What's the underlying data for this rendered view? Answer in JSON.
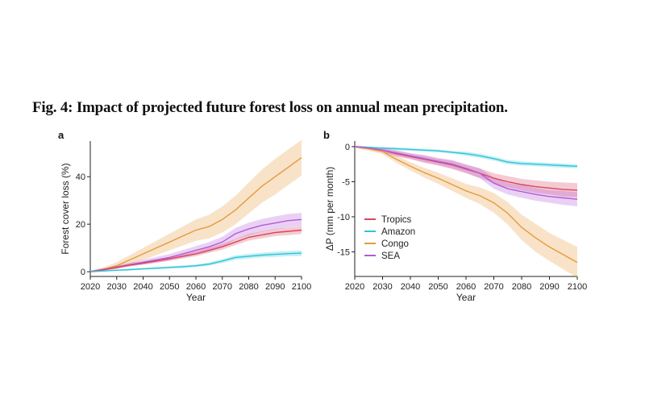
{
  "figure": {
    "title": "Fig. 4: Impact of projected future forest loss on annual mean precipitation."
  },
  "colors": {
    "Tropics": "#d9465f",
    "Amazon": "#2fc4d8",
    "Congo": "#e69a3d",
    "SEA": "#b45ad8",
    "axis": "#222222"
  },
  "chart_data": [
    {
      "panel": "a",
      "type": "line",
      "xlabel": "Year",
      "ylabel": "Forest cover loss (%)",
      "xlim": [
        2020,
        2100
      ],
      "ylim": [
        -2,
        55
      ],
      "xticks": [
        2020,
        2030,
        2040,
        2050,
        2060,
        2070,
        2080,
        2090,
        2100
      ],
      "yticks": [
        0,
        20,
        40
      ],
      "x": [
        2020,
        2025,
        2030,
        2035,
        2040,
        2045,
        2050,
        2055,
        2060,
        2065,
        2070,
        2075,
        2080,
        2085,
        2090,
        2095,
        2100
      ],
      "legend": false,
      "series": [
        {
          "name": "Congo",
          "values": [
            0,
            1,
            2.5,
            5,
            7.5,
            10,
            12.5,
            15,
            17.5,
            19,
            22,
            26,
            31,
            36,
            40,
            44,
            48
          ],
          "band": [
            0.5,
            0.8,
            1.5,
            2,
            2.5,
            3,
            3.5,
            4,
            4.5,
            5,
            5.5,
            6,
            6.5,
            7,
            7.5,
            7.5,
            7.5
          ]
        },
        {
          "name": "SEA",
          "values": [
            0,
            1,
            2,
            3,
            4,
            5,
            6,
            7.5,
            9,
            10.5,
            12.5,
            16,
            18,
            19.5,
            20.5,
            21.5,
            22
          ],
          "band": [
            0.3,
            0.5,
            0.7,
            0.8,
            1,
            1.2,
            1.4,
            1.6,
            1.8,
            2,
            2.2,
            2.4,
            2.6,
            2.7,
            2.8,
            2.8,
            2.8
          ]
        },
        {
          "name": "Tropics",
          "values": [
            0,
            0.8,
            1.8,
            2.8,
            3.6,
            4.5,
            5.5,
            6.5,
            7.5,
            9,
            10.5,
            12.5,
            14.5,
            15.5,
            16.5,
            17,
            17.5
          ],
          "band": [
            0.2,
            0.3,
            0.4,
            0.5,
            0.6,
            0.7,
            0.8,
            0.9,
            1,
            1.1,
            1.2,
            1.3,
            1.4,
            1.5,
            1.5,
            1.6,
            1.6
          ]
        },
        {
          "name": "Amazon",
          "values": [
            0,
            0.3,
            0.6,
            0.9,
            1.2,
            1.5,
            1.8,
            2.1,
            2.5,
            3.2,
            4.5,
            6,
            6.5,
            7,
            7.3,
            7.6,
            7.8
          ],
          "band": [
            0.2,
            0.3,
            0.3,
            0.4,
            0.4,
            0.5,
            0.5,
            0.6,
            0.6,
            0.7,
            0.8,
            0.9,
            1,
            1,
            1.1,
            1.1,
            1.2
          ]
        }
      ]
    },
    {
      "panel": "b",
      "type": "line",
      "xlabel": "Year",
      "ylabel": "ΔP (mm per month)",
      "xlim": [
        2020,
        2100
      ],
      "ylim": [
        -18.5,
        0.8
      ],
      "xticks": [
        2020,
        2030,
        2040,
        2050,
        2060,
        2070,
        2080,
        2090,
        2100
      ],
      "yticks": [
        0,
        -5,
        -10,
        -15
      ],
      "x": [
        2020,
        2025,
        2030,
        2035,
        2040,
        2045,
        2050,
        2055,
        2060,
        2065,
        2070,
        2075,
        2080,
        2085,
        2090,
        2095,
        2100
      ],
      "legend": true,
      "legend_position": "bottom-left",
      "legend_entries": [
        "Tropics",
        "Amazon",
        "Congo",
        "SEA"
      ],
      "series": [
        {
          "name": "Tropics",
          "values": [
            0,
            -0.2,
            -0.5,
            -1,
            -1.4,
            -1.8,
            -2.2,
            -2.6,
            -3.2,
            -3.8,
            -4.5,
            -5,
            -5.4,
            -5.7,
            -5.9,
            -6.1,
            -6.2
          ],
          "band": [
            0.1,
            0.2,
            0.3,
            0.4,
            0.4,
            0.5,
            0.5,
            0.6,
            0.6,
            0.7,
            0.7,
            0.8,
            0.8,
            0.9,
            0.9,
            1,
            1
          ]
        },
        {
          "name": "Amazon",
          "values": [
            0,
            -0.1,
            -0.2,
            -0.3,
            -0.4,
            -0.5,
            -0.6,
            -0.8,
            -1,
            -1.3,
            -1.7,
            -2.2,
            -2.4,
            -2.5,
            -2.6,
            -2.7,
            -2.8
          ],
          "band": [
            0.1,
            0.1,
            0.1,
            0.2,
            0.2,
            0.2,
            0.2,
            0.2,
            0.3,
            0.3,
            0.3,
            0.3,
            0.3,
            0.3,
            0.3,
            0.3,
            0.3
          ]
        },
        {
          "name": "Congo",
          "values": [
            0,
            -0.3,
            -0.7,
            -1.8,
            -2.8,
            -3.7,
            -4.5,
            -5.4,
            -6.3,
            -7,
            -8,
            -9.5,
            -11.5,
            -13,
            -14.3,
            -15.4,
            -16.5
          ],
          "band": [
            0.2,
            0.3,
            0.4,
            0.5,
            0.6,
            0.7,
            0.8,
            0.9,
            1,
            1.2,
            1.4,
            1.6,
            1.8,
            2,
            2,
            2.1,
            2.2
          ]
        },
        {
          "name": "SEA",
          "values": [
            0,
            -0.2,
            -0.5,
            -0.9,
            -1.3,
            -1.7,
            -2.1,
            -2.5,
            -3.1,
            -3.8,
            -5.2,
            -6,
            -6.4,
            -6.8,
            -7.1,
            -7.3,
            -7.5
          ],
          "band": [
            0.1,
            0.2,
            0.3,
            0.4,
            0.4,
            0.5,
            0.5,
            0.6,
            0.6,
            0.7,
            0.8,
            0.8,
            0.9,
            0.9,
            0.9,
            1,
            1
          ]
        }
      ]
    }
  ]
}
